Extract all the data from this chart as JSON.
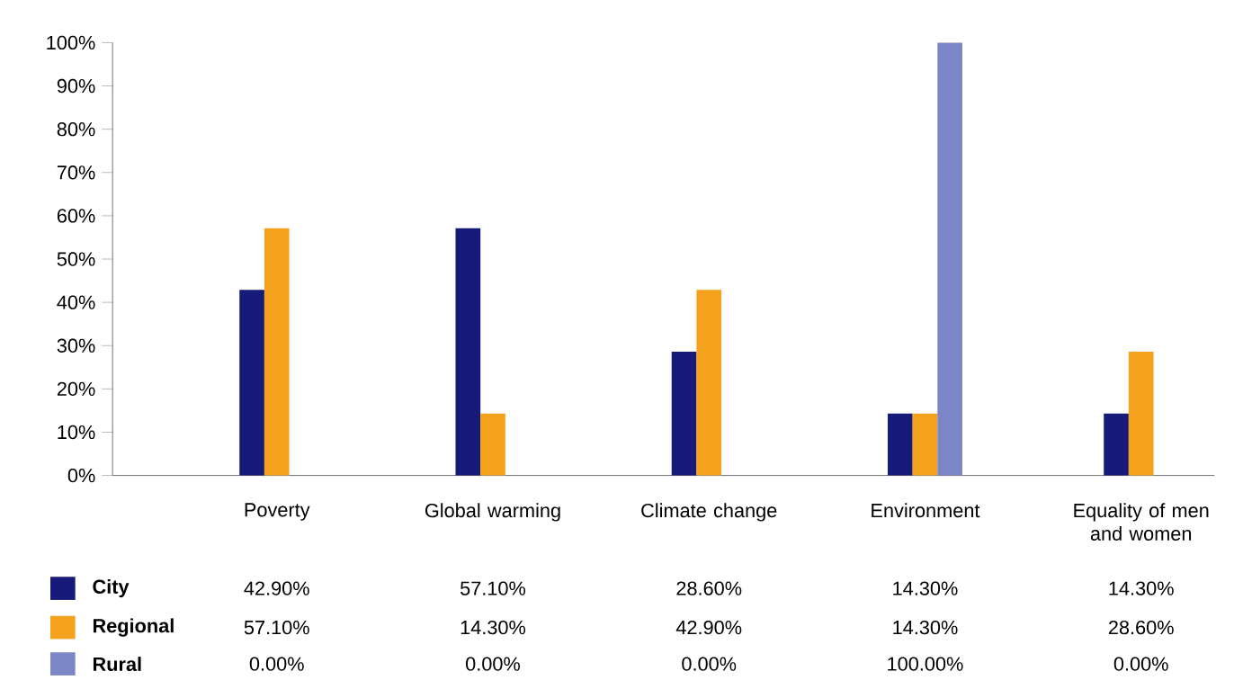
{
  "chart_data": {
    "type": "bar",
    "categories": [
      "Poverty",
      "Global warming",
      "Climate change",
      "Environment",
      "Equality of men and women"
    ],
    "series": [
      {
        "name": "City",
        "color": "#161a78",
        "values": [
          42.9,
          57.1,
          28.6,
          14.3,
          14.3
        ],
        "value_labels": [
          "42.90%",
          "57.10%",
          "28.60%",
          "14.30%",
          "14.30%"
        ]
      },
      {
        "name": "Regional",
        "color": "#f4a11d",
        "values": [
          57.1,
          14.3,
          42.9,
          14.3,
          28.6
        ],
        "value_labels": [
          "57.10%",
          "14.30%",
          "42.90%",
          "14.30%",
          "28.60%"
        ]
      },
      {
        "name": "Rural",
        "color": "#7b86c6",
        "values": [
          0,
          0,
          0,
          100,
          0
        ],
        "value_labels": [
          "0.00%",
          "0.00%",
          "0.00%",
          "100.00%",
          "0.00%"
        ]
      }
    ],
    "ylim": [
      0,
      100
    ],
    "yticks": [
      {
        "value": 0,
        "label": "0%"
      },
      {
        "value": 10,
        "label": "10%"
      },
      {
        "value": 20,
        "label": "20%"
      },
      {
        "value": 30,
        "label": "30%"
      },
      {
        "value": 40,
        "label": "40%"
      },
      {
        "value": 50,
        "label": "50%"
      },
      {
        "value": 60,
        "label": "60%"
      },
      {
        "value": 70,
        "label": "70%"
      },
      {
        "value": 80,
        "label": "80%"
      },
      {
        "value": 90,
        "label": "90%"
      },
      {
        "value": 100,
        "label": "100%"
      }
    ],
    "legend": "bottom"
  }
}
